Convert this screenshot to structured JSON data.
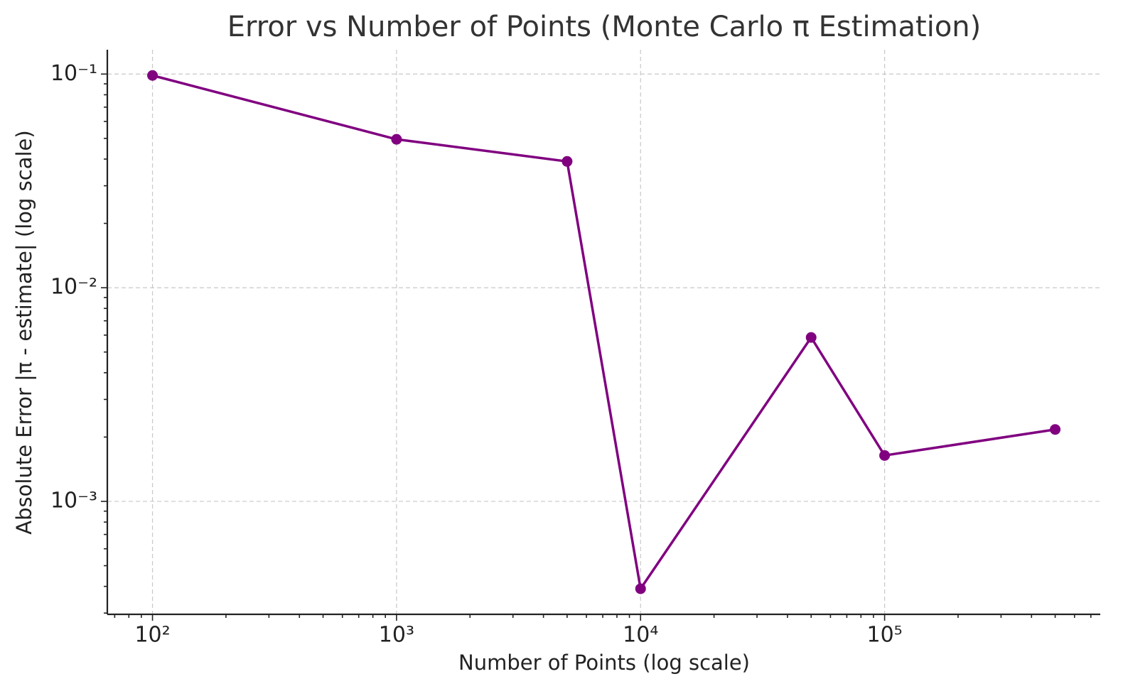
{
  "chart_data": {
    "type": "line",
    "title": "Error vs Number of Points (Monte Carlo π Estimation)",
    "x_label": "Number of Points (log scale)",
    "y_label": "Absolute Error |π - estimate| (log scale)",
    "x": [
      100,
      1000,
      5000,
      10000,
      50000,
      100000,
      500000
    ],
    "series": [
      {
        "color": "#800080",
        "values": [
          0.0985,
          0.0495,
          0.039,
          0.00039,
          0.00585,
          0.00164,
          0.00217
        ]
      }
    ],
    "xscale": "log",
    "yscale": "log",
    "xlim": [
      65.3,
      765000
    ],
    "ylim": [
      0.000296,
      0.13
    ],
    "xticks": [
      {
        "value": 100,
        "label": "10²"
      },
      {
        "value": 1000,
        "label": "10³"
      },
      {
        "value": 10000,
        "label": "10⁴"
      },
      {
        "value": 100000,
        "label": "10⁵"
      }
    ],
    "yticks": [
      {
        "value": 0.1,
        "label": "10⁻¹"
      },
      {
        "value": 0.01,
        "label": "10⁻²"
      },
      {
        "value": 0.001,
        "label": "10⁻³"
      }
    ],
    "grid": true,
    "marker": "circle"
  }
}
